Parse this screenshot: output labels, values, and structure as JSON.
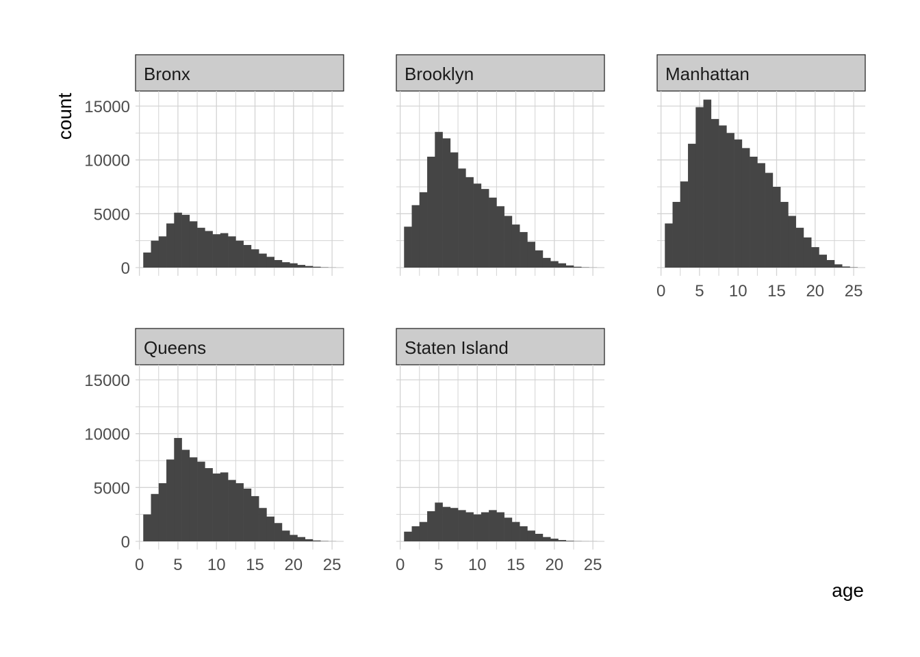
{
  "chart_data": {
    "type": "bar",
    "subtype": "faceted-histogram",
    "xlabel": "age",
    "ylabel": "count",
    "xlim": [
      -0.5,
      26.5
    ],
    "ylim": [
      0,
      15600
    ],
    "x_ticks": [
      0,
      5,
      10,
      15,
      20,
      25
    ],
    "y_ticks": [
      0,
      5000,
      10000,
      15000
    ],
    "y_minor_ticks": [
      2500,
      7500,
      12500
    ],
    "x_minor_ticks": [
      2.5,
      7.5,
      12.5,
      17.5,
      22.5
    ],
    "grid": true,
    "bin_width": 1,
    "bar_color": "#454545",
    "strip_fill": "#cccccc",
    "grid_color": "#d3d3d3",
    "bins": [
      1,
      2,
      3,
      4,
      5,
      6,
      7,
      8,
      9,
      10,
      11,
      12,
      13,
      14,
      15,
      16,
      17,
      18,
      19,
      20,
      21,
      22,
      23,
      24,
      25
    ],
    "panels": [
      {
        "name": "Bronx",
        "values": [
          1400,
          2500,
          2900,
          4100,
          5100,
          4900,
          4300,
          3700,
          3400,
          3100,
          3200,
          2900,
          2500,
          2100,
          1700,
          1300,
          1000,
          700,
          500,
          400,
          250,
          150,
          80,
          30,
          10
        ]
      },
      {
        "name": "Brooklyn",
        "values": [
          3800,
          5800,
          7000,
          10300,
          12600,
          12000,
          10700,
          9200,
          8400,
          7800,
          7300,
          6500,
          5700,
          4800,
          4000,
          3300,
          2400,
          1600,
          900,
          600,
          400,
          200,
          80,
          30,
          10
        ]
      },
      {
        "name": "Manhattan",
        "values": [
          4100,
          6100,
          8000,
          11500,
          14900,
          15600,
          13800,
          13200,
          12500,
          11900,
          11100,
          10300,
          9700,
          8800,
          7500,
          6100,
          4800,
          3700,
          2800,
          1900,
          1200,
          700,
          300,
          100,
          30
        ]
      },
      {
        "name": "Queens",
        "values": [
          2500,
          4400,
          5400,
          7600,
          9600,
          8500,
          7800,
          7400,
          6800,
          6300,
          6400,
          5700,
          5400,
          4900,
          4200,
          3100,
          2300,
          1700,
          1000,
          600,
          400,
          200,
          80,
          30,
          10
        ]
      },
      {
        "name": "Staten Island",
        "values": [
          900,
          1400,
          1800,
          2800,
          3600,
          3200,
          3100,
          2900,
          2700,
          2500,
          2700,
          2900,
          2700,
          2200,
          1800,
          1400,
          1000,
          700,
          400,
          250,
          120,
          50,
          20,
          10,
          5
        ]
      }
    ]
  }
}
